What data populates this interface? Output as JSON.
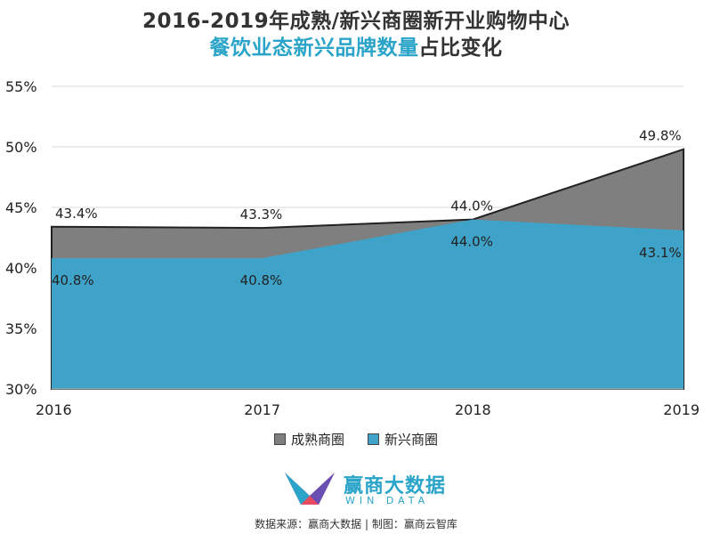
{
  "title": {
    "line1": "2016-2019年成熟/新兴商圈新开业购物中心",
    "line2_highlight": "餐饮业态新兴品牌数量",
    "line2_rest": "占比变化"
  },
  "chart_data": {
    "type": "area",
    "x": [
      "2016",
      "2017",
      "2018",
      "2019"
    ],
    "series": [
      {
        "name": "成熟商圈",
        "values": [
          43.4,
          43.3,
          44.0,
          49.8
        ],
        "labels": [
          "43.4%",
          "43.3%",
          "44.0%",
          "49.8%"
        ],
        "color": "#7f7f7f"
      },
      {
        "name": "新兴商圈",
        "values": [
          40.8,
          40.8,
          44.0,
          43.1
        ],
        "labels": [
          "40.8%",
          "40.8%",
          "44.0%",
          "43.1%"
        ],
        "color": "#3fa3c9"
      }
    ],
    "yticks": [
      "30%",
      "35%",
      "40%",
      "45%",
      "50%",
      "55%"
    ],
    "ylim": [
      30,
      55
    ],
    "legend_position": "bottom",
    "grid": true
  },
  "logo": {
    "name": "赢商大数据",
    "sub": "WIN DATA"
  },
  "source": "数据来源：赢商大数据 | 制图：赢商云智库"
}
